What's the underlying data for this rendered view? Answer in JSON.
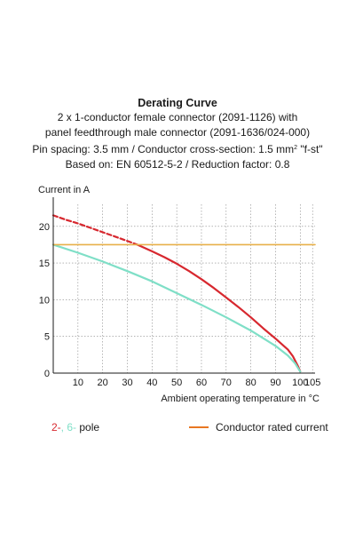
{
  "header": {
    "title": "Derating Curve",
    "line1": "2 x 1-conductor female connector (2091-1126) with",
    "line2": "panel feedthrough male connector (2091-1636/024-000)",
    "line3_a": "Pin spacing: 3.5 mm / Conductor cross-section: 1.5 mm",
    "line3_sup": "2",
    "line3_b": " \"f-st\"",
    "line4": "Based on: EN 60512-5-2 / Reduction factor: 0.8"
  },
  "legend": {
    "pole_a": "2-",
    "pole_sep": ", ",
    "pole_b": "6-",
    "pole_suffix": " pole",
    "rated": "Conductor rated current"
  },
  "chart_data": {
    "type": "line",
    "ylabel": "Current in A",
    "xlabel": "Ambient operating temperature in °C",
    "xlim": [
      0,
      106
    ],
    "ylim": [
      0,
      23
    ],
    "xticks": [
      10,
      20,
      30,
      40,
      50,
      60,
      70,
      80,
      90,
      100,
      105
    ],
    "yticks": [
      0,
      5,
      10,
      15,
      20
    ],
    "grid": true,
    "colors": {
      "pole2": "#d7282f",
      "pole6": "#7fdfc7",
      "rated": "#e8b04a",
      "grid": "#888888"
    },
    "series": [
      {
        "key": "pole2-dashed",
        "style": "dashed",
        "color": "#d7282f",
        "x": [
          0,
          5,
          10,
          15,
          20,
          25,
          30,
          34
        ],
        "y": [
          21.5,
          20.9,
          20.4,
          19.8,
          19.2,
          18.6,
          18.0,
          17.5
        ]
      },
      {
        "key": "pole2",
        "style": "solid",
        "color": "#d7282f",
        "x": [
          34,
          40,
          45,
          50,
          55,
          60,
          65,
          70,
          75,
          80,
          85,
          90,
          95,
          97,
          99,
          100
        ],
        "y": [
          17.5,
          16.6,
          15.8,
          14.9,
          13.9,
          12.8,
          11.6,
          10.3,
          9.0,
          7.6,
          6.1,
          4.7,
          3.2,
          2.3,
          1.0,
          0.2
        ]
      },
      {
        "key": "pole6",
        "style": "solid",
        "color": "#7fdfc7",
        "x": [
          0,
          10,
          20,
          30,
          40,
          50,
          60,
          70,
          80,
          90,
          95,
          98,
          100
        ],
        "y": [
          17.5,
          16.4,
          15.2,
          13.9,
          12.5,
          10.9,
          9.3,
          7.6,
          5.8,
          3.7,
          2.4,
          1.3,
          0.2
        ]
      },
      {
        "key": "rated",
        "style": "solid",
        "color": "#e8b04a",
        "x": [
          0,
          106
        ],
        "y": [
          17.5,
          17.5
        ]
      }
    ]
  }
}
